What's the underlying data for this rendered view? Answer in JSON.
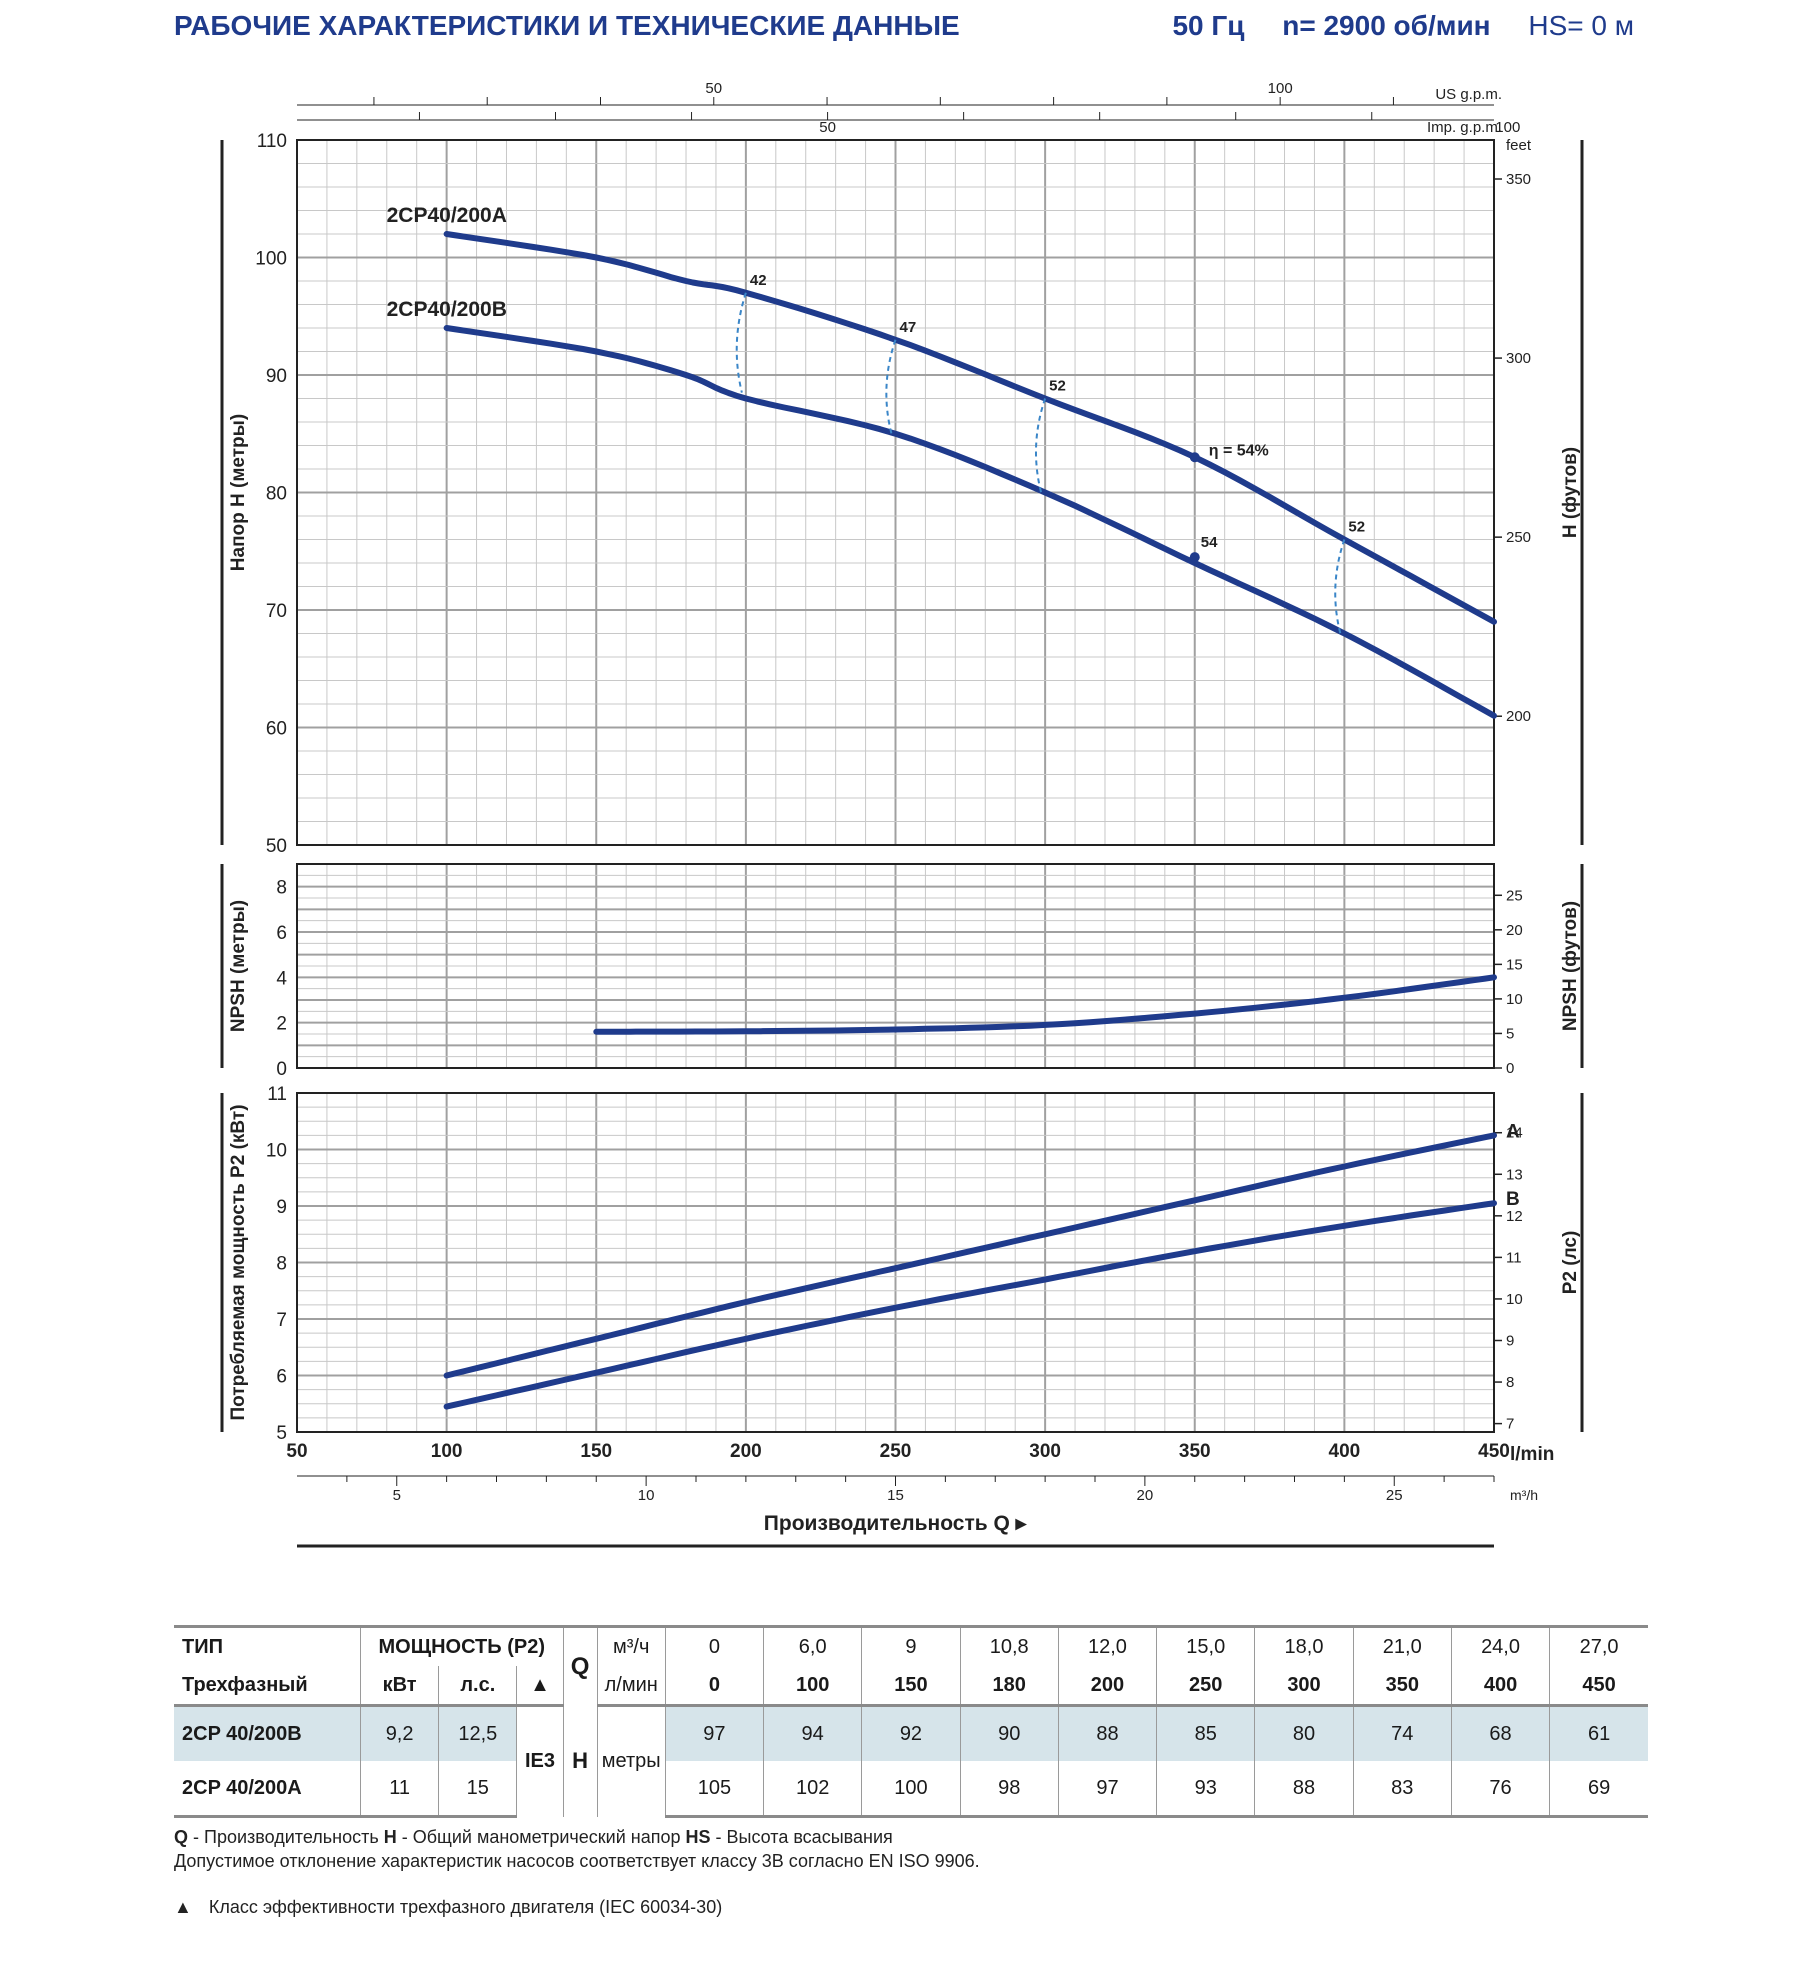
{
  "header": {
    "title": "РАБОЧИЕ ХАРАКТЕРИСТИКИ И ТЕХНИЧЕСКИЕ ДАННЫЕ",
    "freq": "50 Гц",
    "speed": "n= 2900 об/мин",
    "hs": "HS= 0 м"
  },
  "colors": {
    "curve": "#1f3b8c",
    "grid": "#c8c8c8",
    "grid_major": "#a0a0a0",
    "eff": "#3a86c8",
    "shade": "#d6e4ea"
  },
  "chart_data": [
    {
      "type": "line",
      "name": "head",
      "x_range": [
        50,
        450
      ],
      "ylim": [
        50,
        110
      ],
      "yticks": [
        50,
        60,
        70,
        80,
        90,
        100,
        110
      ],
      "ylabel": "Напор H (метры)",
      "ylabel_right": "H (футов)",
      "right_ticks": [
        {
          "v": 200,
          "label": "200"
        },
        {
          "v": 250,
          "label": "250"
        },
        {
          "v": 300,
          "label": "300"
        },
        {
          "v": 350,
          "label": "350"
        }
      ],
      "right_unit": "feet",
      "series": [
        {
          "name": "2CP40/200A",
          "x": [
            100,
            150,
            180,
            200,
            250,
            300,
            350,
            400,
            450
          ],
          "y": [
            102,
            100,
            98,
            97,
            93,
            88,
            83,
            76,
            69
          ]
        },
        {
          "name": "2CP40/200B",
          "x": [
            100,
            150,
            180,
            200,
            250,
            300,
            350,
            400,
            450
          ],
          "y": [
            94,
            92,
            90,
            88,
            85,
            80,
            74,
            68,
            61
          ]
        }
      ],
      "efficiency": [
        {
          "label": "42",
          "x": 200,
          "yA": 97,
          "yB": 88.5
        },
        {
          "label": "47",
          "x": 250,
          "yA": 93,
          "yB": 85
        },
        {
          "label": "52",
          "x": 300,
          "yA": 88,
          "yB": 80
        },
        {
          "label": "52",
          "x": 400,
          "yA": 76,
          "yB": 68
        }
      ],
      "bep": {
        "x": 350,
        "yA": 83,
        "yB": 74.5,
        "labelA": "η = 54%",
        "labelB": "54"
      },
      "top_axes": [
        {
          "unit": "US g.p.m.",
          "labels": [
            {
              "v": 50,
              "label": "50"
            },
            {
              "v": 100,
              "label": "100"
            }
          ]
        },
        {
          "unit": "Imp. g.p.m.",
          "labels": [
            {
              "v": 50,
              "label": "50"
            },
            {
              "v": 100,
              "label": "100"
            }
          ]
        }
      ]
    },
    {
      "type": "line",
      "name": "npsh",
      "x_range": [
        50,
        450
      ],
      "ylim": [
        0,
        9
      ],
      "yticks": [
        0,
        2,
        4,
        6,
        8
      ],
      "ylabel": "NPSH (метры)",
      "ylabel_right": "NPSH (футов)",
      "right_ticks": [
        {
          "v": 0,
          "label": "0"
        },
        {
          "v": 5,
          "label": "5"
        },
        {
          "v": 10,
          "label": "10"
        },
        {
          "v": 15,
          "label": "15"
        },
        {
          "v": 20,
          "label": "20"
        },
        {
          "v": 25,
          "label": "25"
        }
      ],
      "series": [
        {
          "x": [
            150,
            200,
            250,
            300,
            350,
            400,
            450
          ],
          "y": [
            1.6,
            1.62,
            1.7,
            1.9,
            2.4,
            3.1,
            4.0
          ]
        }
      ]
    },
    {
      "type": "line",
      "name": "power",
      "x_range": [
        50,
        450
      ],
      "ylim": [
        5,
        11
      ],
      "yticks": [
        5,
        6,
        7,
        8,
        9,
        10,
        11
      ],
      "ylabel": "Потребляемая мощность P2 (кВт)",
      "ylabel_right": "P2 (лс)",
      "right_ticks": [
        {
          "v": 7,
          "label": "7"
        },
        {
          "v": 8,
          "label": "8"
        },
        {
          "v": 9,
          "label": "9"
        },
        {
          "v": 10,
          "label": "10"
        },
        {
          "v": 11,
          "label": "11"
        },
        {
          "v": 12,
          "label": "12"
        },
        {
          "v": 13,
          "label": "13"
        },
        {
          "v": 14,
          "label": "14"
        }
      ],
      "series": [
        {
          "name": "A",
          "x": [
            100,
            150,
            200,
            250,
            300,
            350,
            400,
            450
          ],
          "y": [
            6.0,
            6.65,
            7.3,
            7.9,
            8.5,
            9.1,
            9.7,
            10.25
          ]
        },
        {
          "name": "B",
          "x": [
            100,
            150,
            200,
            250,
            300,
            350,
            400,
            450
          ],
          "y": [
            5.45,
            6.05,
            6.65,
            7.2,
            7.7,
            8.2,
            8.65,
            9.05
          ]
        }
      ],
      "xticks": [
        50,
        100,
        150,
        200,
        250,
        300,
        350,
        400,
        450
      ],
      "xunit": "l/min",
      "bottom_axis": {
        "unit": "m³/h",
        "labels": [
          {
            "v": 5,
            "label": "5"
          },
          {
            "v": 10,
            "label": "10"
          },
          {
            "v": 15,
            "label": "15"
          },
          {
            "v": 20,
            "label": "20"
          },
          {
            "v": 25,
            "label": "25"
          }
        ]
      },
      "xlabel": "Производительность Q ▸"
    }
  ],
  "table": {
    "h_type": "ТИП",
    "h_power": "МОЩНОСТЬ (P2)",
    "h_q": "Q",
    "h_m3h": "м³/ч",
    "h_lmin": "л/мин",
    "h_phase": "Трехфазный",
    "h_kw": "кВт",
    "h_hp": "л.с.",
    "h_tri": "▲",
    "q_m3h": [
      "0",
      "6,0",
      "9",
      "10,8",
      "12,0",
      "15,0",
      "18,0",
      "21,0",
      "24,0",
      "27,0"
    ],
    "q_lmin": [
      "0",
      "100",
      "150",
      "180",
      "200",
      "250",
      "300",
      "350",
      "400",
      "450"
    ],
    "ie": "IE3",
    "h_h": "H",
    "h_metres": "метры",
    "rows": [
      {
        "model": "2CP 40/200B",
        "kw": "9,2",
        "hp": "12,5",
        "h": [
          "97",
          "94",
          "92",
          "90",
          "88",
          "85",
          "80",
          "74",
          "68",
          "61"
        ]
      },
      {
        "model": "2CP 40/200A",
        "kw": "11",
        "hp": "15",
        "h": [
          "105",
          "102",
          "100",
          "98",
          "97",
          "93",
          "88",
          "83",
          "76",
          "69"
        ]
      }
    ]
  },
  "notes": {
    "q": "Q",
    "q_txt": " - Производительность ",
    "h": "H",
    "h_txt": " - Общий манометрический напор ",
    "hs": "HS",
    "hs_txt": " - Высота всасывания",
    "line2": "Допустимое отклонение характеристик насосов соответствует классу 3B согласно EN ISO 9906.",
    "tri": "▲",
    "line3": "Класс эффективности трехфазного двигателя (IEC 60034-30)"
  }
}
